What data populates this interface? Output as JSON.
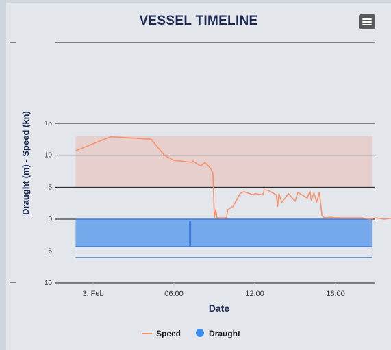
{
  "title": "VESSEL TIMELINE",
  "menu_icon": "hamburger-menu-icon",
  "chart_data": {
    "type": "line",
    "title": "VESSEL TIMELINE",
    "xlabel": "Date",
    "ylabel": "Draught (m) - Speed (kn)",
    "x_ticks": [
      "3. Feb",
      "06:00",
      "12:00",
      "18:00"
    ],
    "y_ticks_upper": [
      "15",
      "10",
      "5",
      "0"
    ],
    "y_ticks_lower": [
      "5",
      "10"
    ],
    "x_range_hours": [
      -2.5,
      20.7
    ],
    "speed_range": [
      0,
      15
    ],
    "draught_range": [
      0,
      10
    ],
    "speed_band": [
      5,
      13
    ],
    "grid": true,
    "legend_position": "bottom",
    "series": [
      {
        "name": "Speed",
        "color": "#f7906b",
        "x": [
          "3. Feb 01:00",
          "3. Feb 02:00",
          "3. Feb 04:00",
          "3. Feb 06:00",
          "3. Feb 06:30",
          "3. Feb 07:00",
          "3. Feb 07:30",
          "3. Feb 08:00",
          "3. Feb 08:30",
          "3. Feb 09:00",
          "3. Feb 09:15",
          "3. Feb 10:00",
          "3. Feb 10:30",
          "3. Feb 11:00",
          "3. Feb 11:30",
          "3. Feb 12:00",
          "3. Feb 12:30",
          "3. Feb 13:00",
          "3. Feb 13:30",
          "3. Feb 14:00",
          "3. Feb 14:30",
          "3. Feb 15:00",
          "3. Feb 15:30",
          "3. Feb 16:00",
          "3. Feb 17:00",
          "3. Feb 18:00",
          "3. Feb 19:00",
          "3. Feb 20:00"
        ],
        "values": [
          10.7,
          12.9,
          12.5,
          9.0,
          8.3,
          9.0,
          7.2,
          0.2,
          0.2,
          1.5,
          2.0,
          4.2,
          4.3,
          3.8,
          4.0,
          4.6,
          4.2,
          2.0,
          4.0,
          2.8,
          3.8,
          4.3,
          0.5,
          0.2,
          0.2,
          0.2,
          0.2,
          0.2
        ],
        "points": [
          [
            -1.3,
            10.7
          ],
          [
            1.3,
            12.9
          ],
          [
            4.3,
            12.5
          ],
          [
            5.3,
            10.0
          ],
          [
            6.0,
            9.2
          ],
          [
            7.3,
            8.9
          ],
          [
            7.4,
            9.1
          ],
          [
            8.0,
            8.3
          ],
          [
            8.3,
            8.9
          ],
          [
            8.7,
            8.0
          ],
          [
            8.9,
            7.2
          ],
          [
            9.0,
            0.2
          ],
          [
            9.1,
            1.5
          ],
          [
            9.2,
            0.2
          ],
          [
            9.9,
            0.2
          ],
          [
            10.0,
            1.5
          ],
          [
            10.4,
            2.0
          ],
          [
            10.9,
            4.0
          ],
          [
            11.2,
            4.3
          ],
          [
            11.9,
            3.8
          ],
          [
            12.0,
            4.0
          ],
          [
            12.6,
            3.8
          ],
          [
            12.7,
            4.6
          ],
          [
            13.0,
            4.5
          ],
          [
            13.6,
            3.8
          ],
          [
            13.7,
            2.0
          ],
          [
            13.8,
            4.0
          ],
          [
            14.0,
            2.6
          ],
          [
            14.5,
            4.0
          ],
          [
            15.0,
            2.8
          ],
          [
            15.2,
            4.2
          ],
          [
            15.9,
            3.3
          ],
          [
            16.1,
            4.4
          ],
          [
            16.2,
            3.0
          ],
          [
            16.4,
            4.1
          ],
          [
            16.6,
            2.7
          ],
          [
            16.8,
            4.2
          ],
          [
            17.0,
            0.5
          ],
          [
            17.2,
            0.2
          ],
          [
            17.6,
            0.3
          ],
          [
            18.0,
            0.2
          ],
          [
            20.0,
            0.2
          ],
          [
            20.5,
            0.0
          ],
          [
            21.0,
            0.2
          ],
          [
            21.6,
            0.0
          ],
          [
            22.4,
            0.2
          ],
          [
            23.3,
            0.2
          ]
        ]
      },
      {
        "name": "Draught",
        "color": "#76a8ec",
        "x": [
          "3. Feb 00:00",
          "3. Feb 23:00"
        ],
        "values": [
          4.3,
          4.3
        ],
        "range": [
          -1.3,
          23.3
        ],
        "spike_at": 7.2
      }
    ],
    "reference_line": 6.0
  }
}
